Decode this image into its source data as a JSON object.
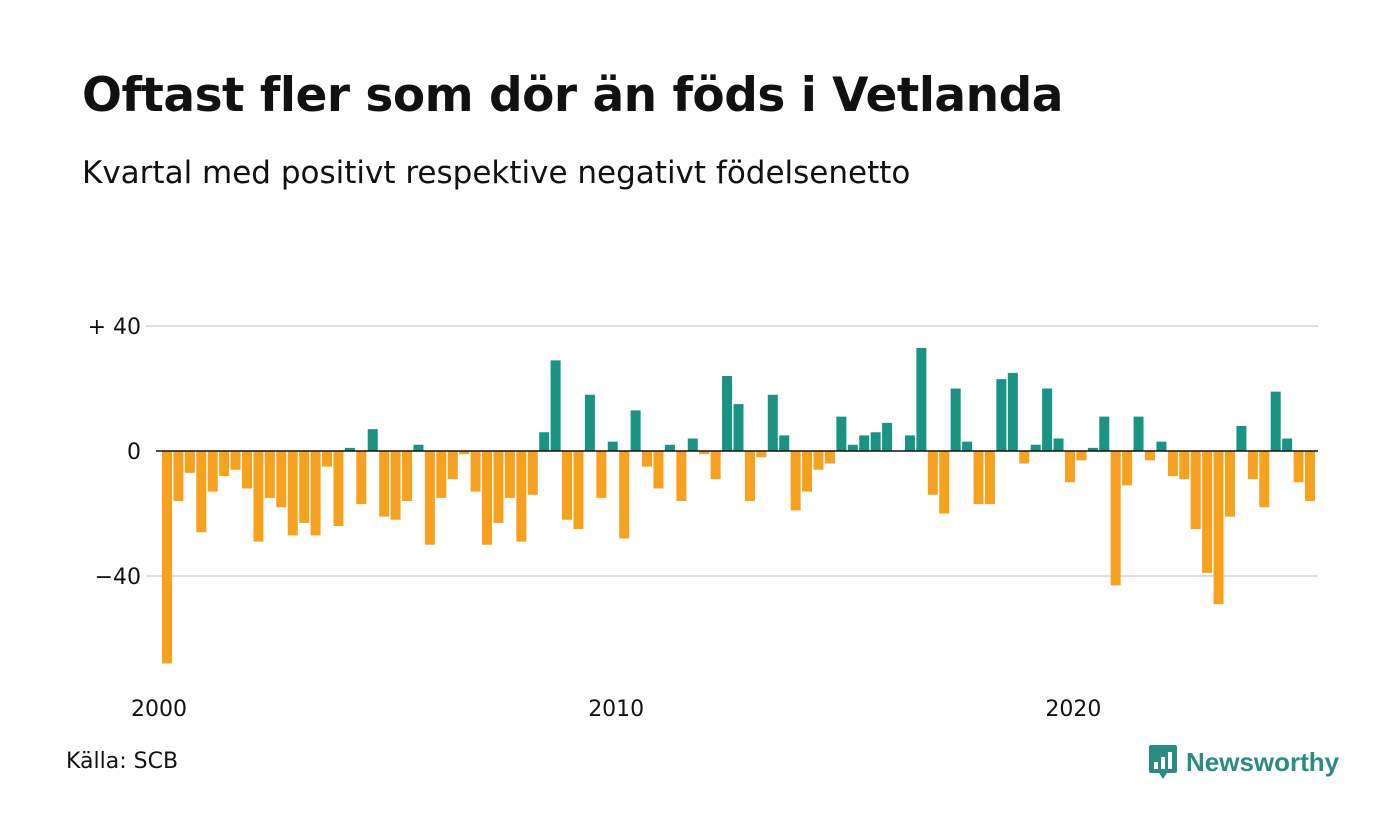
{
  "title": "Oftast fler som dör än föds i Vetlanda",
  "subtitle": "Kvartal med positivt respektive negativt födelsenetto",
  "source": "Källa: SCB",
  "brand": {
    "name": "Newsworthy",
    "icon": "bar-chart-speech-bubble-icon",
    "color": "#2a8c82"
  },
  "colors": {
    "positive": "#1a9384",
    "negative": "#f6a11f",
    "grid": "#dddddd",
    "zero_line": "#111111"
  },
  "chart_data": {
    "type": "bar",
    "title": "Oftast fler som dör än föds i Vetlanda",
    "subtitle": "Kvartal med positivt respektive negativt födelsenetto",
    "xlabel": "",
    "ylabel": "",
    "x_start": "2000 Q1",
    "x_ticks": [
      {
        "label": "2000",
        "index": 0
      },
      {
        "label": "2010",
        "index": 40
      },
      {
        "label": "2020",
        "index": 80
      }
    ],
    "y_ticks": [
      {
        "label": "+ 40",
        "value": 40
      },
      {
        "label": "0",
        "value": 0
      },
      {
        "label": "−40",
        "value": -40
      }
    ],
    "ylim": [
      -70,
      40
    ],
    "grid": true,
    "legend": false,
    "values": [
      -68,
      -16,
      -7,
      -26,
      -13,
      -8,
      -6,
      -12,
      -29,
      -15,
      -18,
      -27,
      -23,
      -27,
      -5,
      -24,
      1,
      -17,
      7,
      -21,
      -22,
      -16,
      2,
      -30,
      -15,
      -9,
      -1,
      -13,
      -30,
      -23,
      -15,
      -29,
      -14,
      6,
      29,
      -22,
      -25,
      18,
      -15,
      3,
      -28,
      13,
      -5,
      -12,
      2,
      -16,
      4,
      -1,
      -9,
      24,
      15,
      -16,
      -2,
      18,
      5,
      -19,
      -13,
      -6,
      -4,
      11,
      2,
      5,
      6,
      9,
      0,
      5,
      33,
      -14,
      -20,
      20,
      3,
      -17,
      -17,
      23,
      25,
      -4,
      2,
      20,
      4,
      -10,
      -3,
      1,
      11,
      -43,
      -11,
      11,
      -3,
      3,
      -8,
      -9,
      -25,
      -39,
      -49,
      -21,
      8,
      -9,
      -18,
      19,
      4,
      -10,
      -16
    ]
  }
}
